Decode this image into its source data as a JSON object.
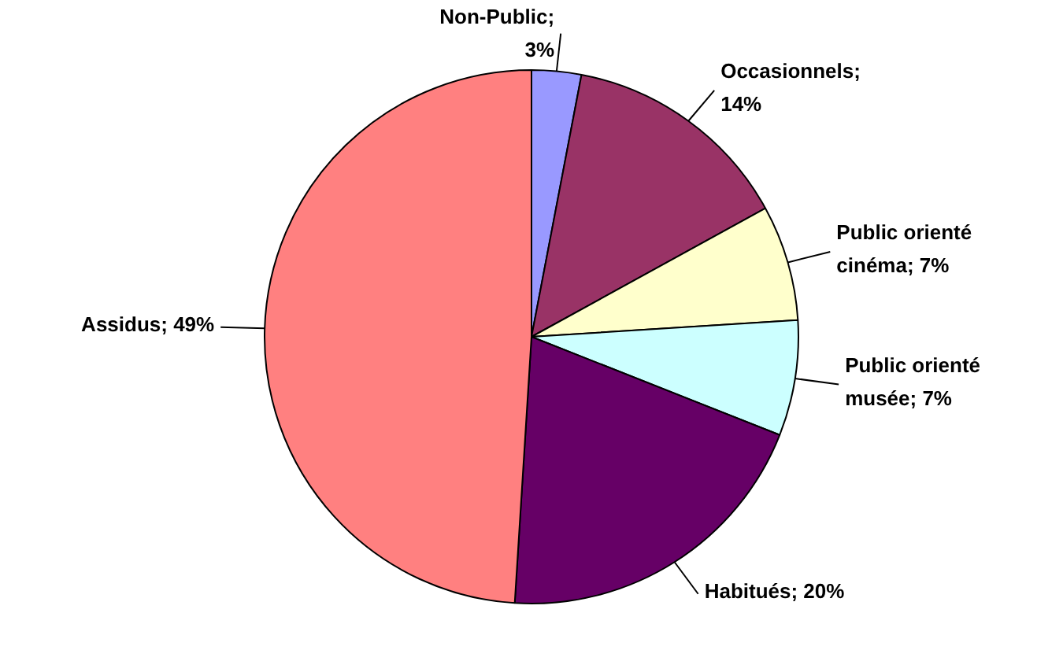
{
  "chart_data": {
    "type": "pie",
    "categories": [
      "Non-Public",
      "Occasionnels",
      "Public orienté cinéma",
      "Public orienté musée",
      "Habitués",
      "Assidus"
    ],
    "values": [
      3,
      14,
      7,
      7,
      20,
      49
    ],
    "value_labels": [
      "; 3%",
      "; 14%",
      "; 7%",
      "; 7%",
      "; 20%",
      "; 49%"
    ],
    "colors": [
      "#9999ff",
      "#993366",
      "#ffffcc",
      "#ccffff",
      "#660066",
      "#ff8080"
    ],
    "legend": false
  }
}
